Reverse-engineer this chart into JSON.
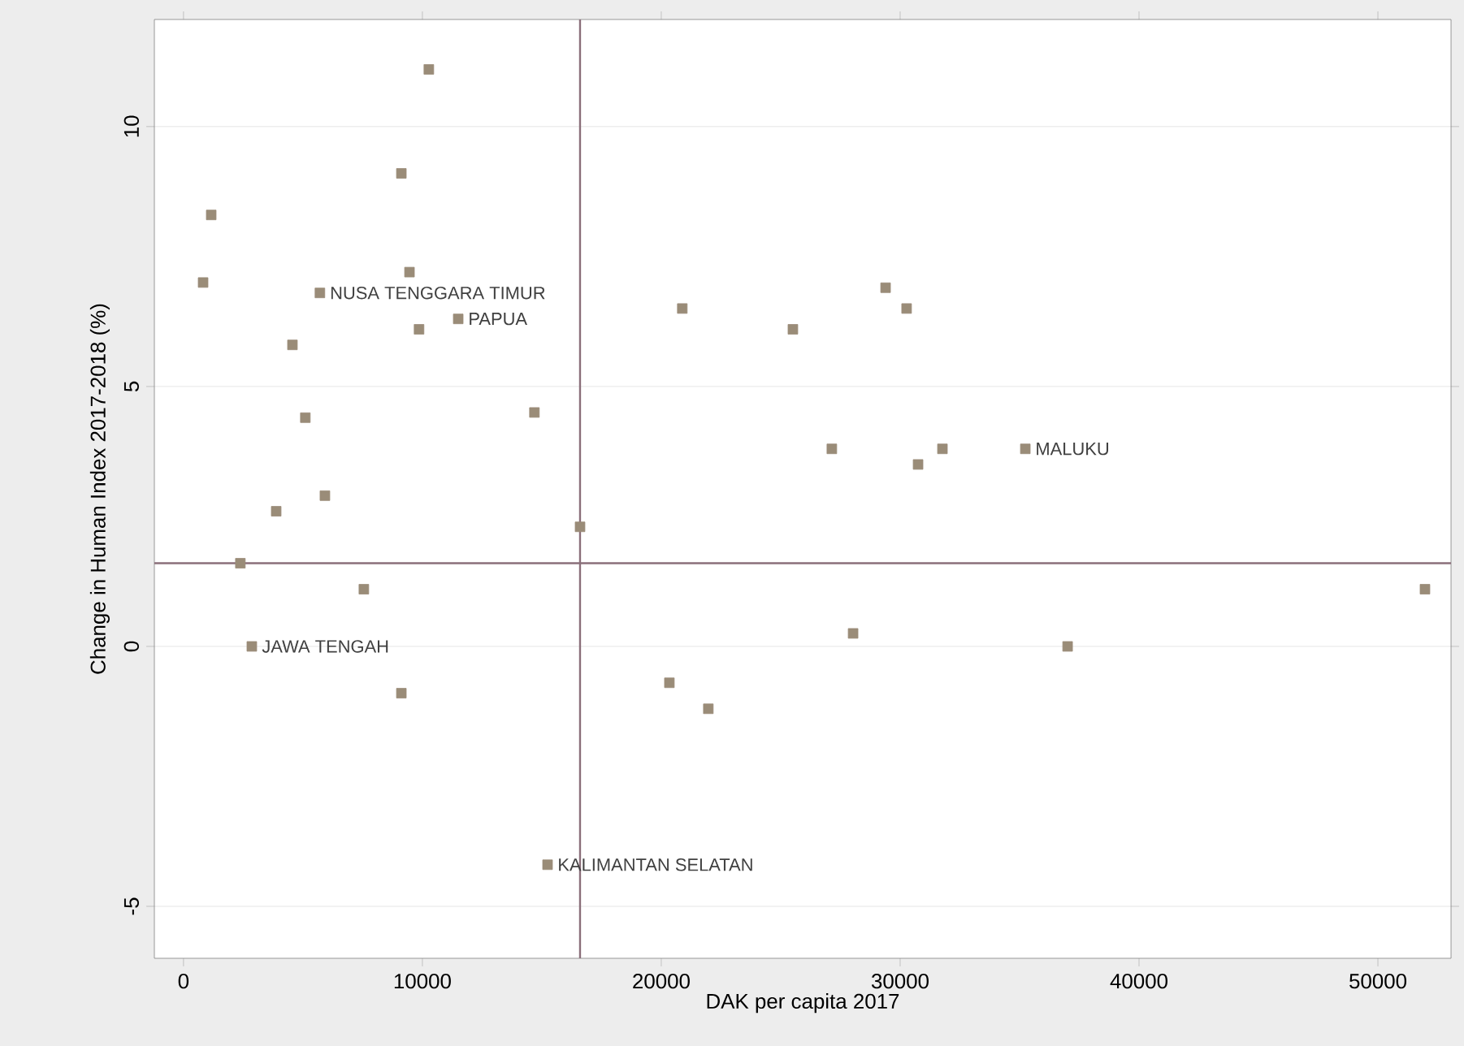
{
  "chart_data": {
    "type": "scatter",
    "xlabel": "DAK per capita 2017",
    "ylabel": "Change in Human Index 2017-2018 (%)",
    "x": [
      10270,
      9120,
      1160,
      820,
      5710,
      9460,
      9860,
      11500,
      20880,
      4560,
      5100,
      14690,
      5920,
      3880,
      16600,
      2380,
      7550,
      2860,
      9120,
      25510,
      29390,
      30270,
      27140,
      30750,
      31770,
      35240,
      28030,
      20340,
      21970,
      37010,
      51970,
      15240
    ],
    "series": [
      {
        "color": "#9a8c78",
        "values": [
          11.1,
          9.1,
          8.3,
          7.0,
          6.8,
          7.2,
          6.1,
          6.3,
          6.5,
          5.8,
          4.4,
          4.5,
          2.9,
          2.6,
          2.3,
          1.6,
          1.1,
          0.0,
          -0.9,
          6.1,
          6.9,
          6.5,
          3.8,
          3.5,
          3.8,
          3.8,
          0.25,
          -0.7,
          -1.2,
          0.0,
          1.1,
          -4.2
        ]
      }
    ],
    "xlim": [
      -1220,
      53060
    ],
    "ylim": [
      -6.0,
      12.06
    ],
    "xticks": [
      0,
      10000,
      20000,
      30000,
      40000,
      50000
    ],
    "yticks": [
      -5,
      0,
      5,
      10
    ],
    "grid": "y",
    "marker": "square",
    "ref_lines": [
      {
        "axis": "x",
        "value": 16600,
        "color": "#8a6f7a"
      },
      {
        "axis": "y",
        "value": 1.6,
        "color": "#8a6f7a"
      }
    ],
    "annotations": [
      {
        "text": "NUSA TENGGARA TIMUR",
        "x": 5710,
        "y": 6.8
      },
      {
        "text": "PAPUA",
        "x": 11500,
        "y": 6.3
      },
      {
        "text": "MALUKU",
        "x": 35240,
        "y": 3.8
      },
      {
        "text": "JAWA TENGAH",
        "x": 2860,
        "y": 0.0
      },
      {
        "text": "KALIMANTAN SELATAN",
        "x": 15240,
        "y": -4.2
      }
    ]
  }
}
